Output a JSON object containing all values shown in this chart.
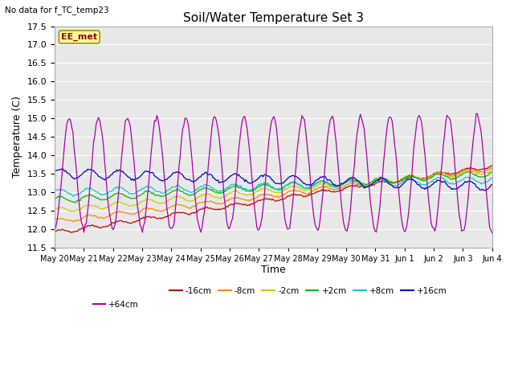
{
  "title": "Soil/Water Temperature Set 3",
  "subtitle": "No data for f_TC_temp23",
  "xlabel": "Time",
  "ylabel": "Temperature (C)",
  "ylim": [
    11.5,
    17.5
  ],
  "yticks": [
    11.5,
    12.0,
    12.5,
    13.0,
    13.5,
    14.0,
    14.5,
    15.0,
    15.5,
    16.0,
    16.5,
    17.0,
    17.5
  ],
  "xtick_labels": [
    "May 20",
    "May 21",
    "May 22",
    "May 23",
    "May 24",
    "May 25",
    "May 26",
    "May 27",
    "May 28",
    "May 29",
    "May 30",
    "May 31",
    "Jun 1",
    "Jun 2",
    "Jun 3",
    "Jun 4"
  ],
  "series": [
    {
      "label": "-16cm",
      "color": "#cc0000",
      "base": 11.9,
      "trend": 0.005,
      "amp": 0.05,
      "phase": 0.5
    },
    {
      "label": "-8cm",
      "color": "#ff8800",
      "base": 12.2,
      "trend": 0.004,
      "amp": 0.06,
      "phase": 0.5
    },
    {
      "label": "-2cm",
      "color": "#cccc00",
      "base": 12.5,
      "trend": 0.003,
      "amp": 0.07,
      "phase": 0.5
    },
    {
      "label": "+2cm",
      "color": "#00bb00",
      "base": 12.78,
      "trend": 0.002,
      "amp": 0.08,
      "phase": 0.5
    },
    {
      "label": "+8cm",
      "color": "#00cccc",
      "base": 12.98,
      "trend": 0.001,
      "amp": 0.09,
      "phase": 0.5
    },
    {
      "label": "+16cm",
      "color": "#0000cc",
      "base": 13.52,
      "trend": -0.001,
      "amp": 0.12,
      "phase": 0.3
    },
    {
      "label": "+64cm",
      "color": "#aa00aa",
      "base": 13.5,
      "trend": 0.0,
      "amp": 1.5,
      "phase": -1.57
    }
  ],
  "annotation_label": "EE_met",
  "annotation_color": "#990000",
  "annotation_bg": "#ffff99",
  "annotation_border": "#999900",
  "fig_bg": "#ffffff",
  "plot_bg": "#e8e8e8",
  "grid_color": "#ffffff",
  "n_points": 360,
  "days": 15,
  "legend_ncol_row1": 6,
  "legend_ncol_row2": 1
}
